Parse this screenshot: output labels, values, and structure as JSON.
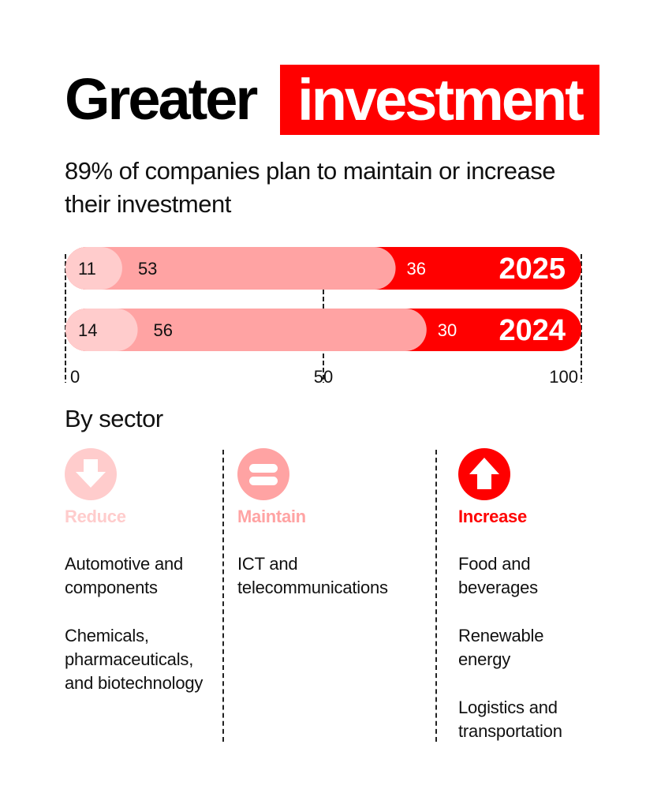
{
  "title": {
    "plain": "Greater",
    "highlight": "investment"
  },
  "subtitle": "89% of companies plan to maintain or increase their investment",
  "colors": {
    "reduce": "#ffcccc",
    "maintain": "#ffa3a3",
    "increase": "#ff0000",
    "text": "#111111",
    "white": "#ffffff"
  },
  "chart_data": {
    "type": "bar",
    "orientation": "horizontal",
    "stacked": true,
    "categories": [
      "2025",
      "2024"
    ],
    "series": [
      {
        "name": "Reduce",
        "values": [
          11,
          14
        ]
      },
      {
        "name": "Maintain",
        "values": [
          53,
          56
        ]
      },
      {
        "name": "Increase",
        "values": [
          36,
          30
        ]
      }
    ],
    "xlim": [
      0,
      100
    ],
    "xticks": [
      "0",
      "50",
      "100"
    ],
    "title": "",
    "xlabel": "",
    "ylabel": ""
  },
  "sectors": {
    "heading": "By sector",
    "columns": [
      {
        "key": "reduce",
        "label": "Reduce",
        "icon": "arrow-down-circle-icon",
        "items": [
          "Automotive and components",
          "Chemicals, pharmaceuticals, and biotechnology"
        ]
      },
      {
        "key": "maintain",
        "label": "Maintain",
        "icon": "equals-circle-icon",
        "items": [
          "ICT and telecommunications"
        ]
      },
      {
        "key": "increase",
        "label": "Increase",
        "icon": "arrow-up-circle-icon",
        "items": [
          "Food and beverages",
          "Renewable energy",
          "Logistics and transportation"
        ]
      }
    ]
  }
}
